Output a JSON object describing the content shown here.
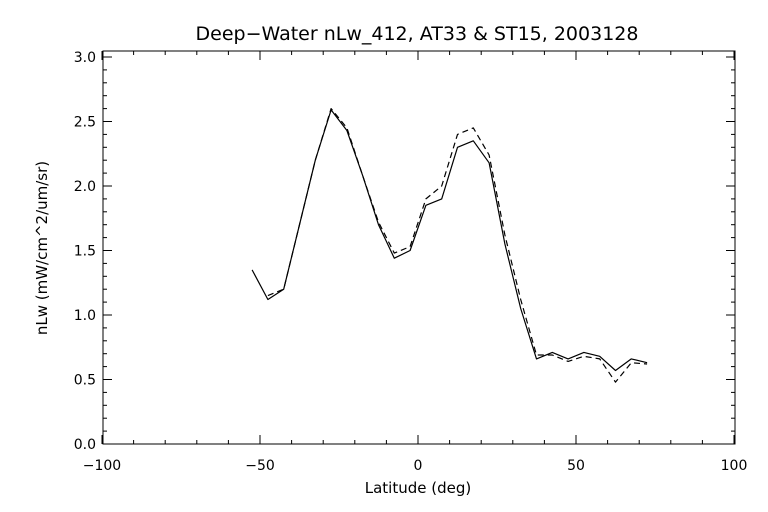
{
  "chart_data": {
    "type": "line",
    "title": "Deep−Water nLw_412, AT33 & ST15, 2003128",
    "xlabel": "Latitude (deg)",
    "ylabel": "nLw (mW/cm^2/um/sr)",
    "xlim": [
      -100,
      100
    ],
    "ylim": [
      0.0,
      3.0
    ],
    "xticks": [
      -100,
      -50,
      0,
      50,
      100
    ],
    "xtick_labels": [
      "−100",
      "−50",
      "0",
      "50",
      "100"
    ],
    "yticks": [
      0.0,
      0.5,
      1.0,
      1.5,
      2.0,
      2.5,
      3.0
    ],
    "ytick_labels": [
      "0.0",
      "0.5",
      "1.0",
      "1.5",
      "2.0",
      "2.5",
      "3.0"
    ],
    "grid": false,
    "series": [
      {
        "style": "solid",
        "color": "#000000",
        "x": [
          -52.5,
          -47.5,
          -42.5,
          -37.5,
          -32.5,
          -27.5,
          -22.5,
          -17.5,
          -12.5,
          -7.5,
          -2.5,
          2.5,
          7.5,
          12.5,
          17.5,
          22.5,
          27.5,
          32.5,
          37.5,
          42.5,
          47.5,
          52.5,
          57.5,
          62.5,
          67.5,
          72.5
        ],
        "y": [
          1.35,
          1.12,
          1.2,
          1.7,
          2.2,
          2.59,
          2.43,
          2.08,
          1.7,
          1.44,
          1.5,
          1.85,
          1.9,
          2.3,
          2.35,
          2.18,
          1.55,
          1.05,
          0.66,
          0.71,
          0.66,
          0.71,
          0.68,
          0.57,
          0.66,
          0.63
        ]
      },
      {
        "style": "dashed",
        "color": "#000000",
        "x": [
          -47.5,
          -42.5,
          -37.5,
          -32.5,
          -27.5,
          -22.5,
          -17.5,
          -12.5,
          -7.5,
          -2.5,
          2.5,
          7.5,
          12.5,
          17.5,
          22.5,
          27.5,
          32.5,
          37.5,
          42.5,
          47.5,
          52.5,
          57.5,
          62.5,
          67.5,
          72.5
        ],
        "y": [
          1.15,
          1.2,
          1.7,
          2.2,
          2.6,
          2.45,
          2.08,
          1.72,
          1.48,
          1.53,
          1.9,
          2.0,
          2.4,
          2.45,
          2.24,
          1.62,
          1.12,
          0.69,
          0.69,
          0.64,
          0.68,
          0.66,
          0.48,
          0.63,
          0.62
        ]
      }
    ]
  }
}
